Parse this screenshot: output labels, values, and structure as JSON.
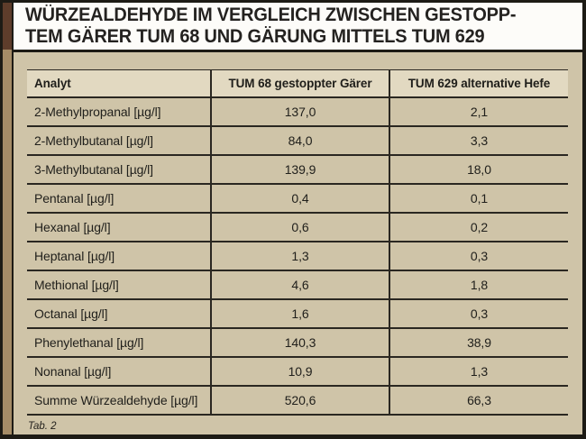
{
  "title": {
    "line1": "WÜRZEALDEHYDE IM VERGLEICH ZWISCHEN GESTOPP-",
    "line2": "TEM GÄRER TUM 68 UND GÄRUNG MITTELS TUM 629"
  },
  "caption": "Tab. 2",
  "colors": {
    "panel_background": "#cfc4a8",
    "title_background": "#fdfcf9",
    "header_row_background": "#e2d9c1",
    "accent_dark_brown": "#5e3d2b",
    "accent_light_brown": "#a58c67",
    "rule_color": "#2a2721",
    "outer_border": "#1d1b15",
    "text_color": "#21201c"
  },
  "chart_data": {
    "type": "table",
    "title": "Würzealdehyde im Vergleich zwischen gestopptem Gärer TUM 68 und Gärung mittels TUM 629",
    "columns": [
      "Analyt",
      "TUM 68 gestoppter Gärer",
      "TUM 629 alternative Hefe"
    ],
    "rows": [
      [
        "2-Methylpropanal [µg/l]",
        "137,0",
        "2,1"
      ],
      [
        "2-Methylbutanal [µg/l]",
        "84,0",
        "3,3"
      ],
      [
        "3-Methylbutanal [µg/l]",
        "139,9",
        "18,0"
      ],
      [
        "Pentanal [µg/l]",
        "0,4",
        "0,1"
      ],
      [
        "Hexanal [µg/l]",
        "0,6",
        "0,2"
      ],
      [
        "Heptanal [µg/l]",
        "1,3",
        "0,3"
      ],
      [
        "Methional [µg/l]",
        "4,6",
        "1,8"
      ],
      [
        "Octanal [µg/l]",
        "1,6",
        "0,3"
      ],
      [
        "Phenylethanal [µg/l]",
        "140,3",
        "38,9"
      ],
      [
        "Nonanal [µg/l]",
        "10,9",
        "1,3"
      ],
      [
        "Summe Würzealdehyde [µg/l]",
        "520,6",
        "66,3"
      ]
    ]
  }
}
